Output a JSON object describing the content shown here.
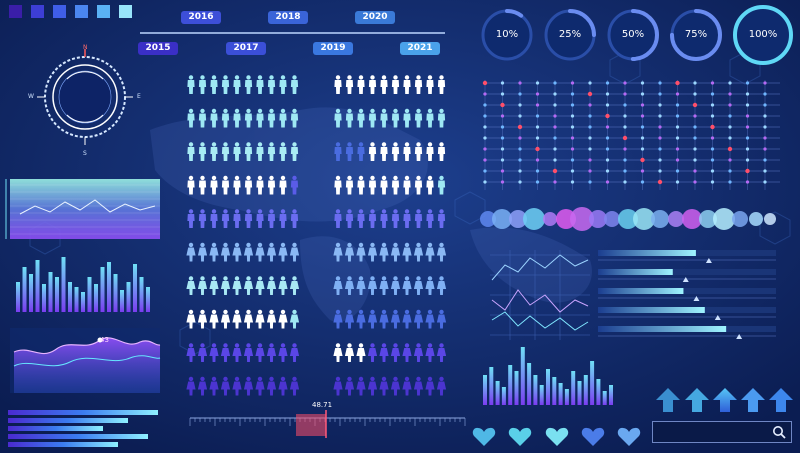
{
  "palette": {
    "swatches": [
      "#3a1ea8",
      "#3d3ed6",
      "#3f5ee8",
      "#4b86f0",
      "#5ab1f4",
      "#98e4fa"
    ],
    "bg_dark": "#0a1a48",
    "bg_mid": "#17357e",
    "accent_cyan": "#6fe0f6",
    "accent_magenta": "#e05cf0",
    "accent_purple": "#7a4af0"
  },
  "timeline": {
    "top_years": [
      "2016",
      "2018",
      "2020"
    ],
    "bottom_years": [
      "2015",
      "2017",
      "2019",
      "2021"
    ]
  },
  "progress_rings": [
    {
      "label": "10%",
      "value": 0.1
    },
    {
      "label": "25%",
      "value": 0.25
    },
    {
      "label": "50%",
      "value": 0.5
    },
    {
      "label": "75%",
      "value": 0.75
    },
    {
      "label": "100%",
      "value": 1.0
    }
  ],
  "compass": {
    "north": "N",
    "south": "S",
    "east": "E",
    "west": "W"
  },
  "line_chart": {
    "peak_label": "43"
  },
  "scale": {
    "value_label": "48.71"
  },
  "icons": {
    "compass": "compass-icon",
    "arrow": "arrow-up-icon",
    "heart": "heart-icon",
    "search": "search-icon",
    "person": "person-icon"
  }
}
